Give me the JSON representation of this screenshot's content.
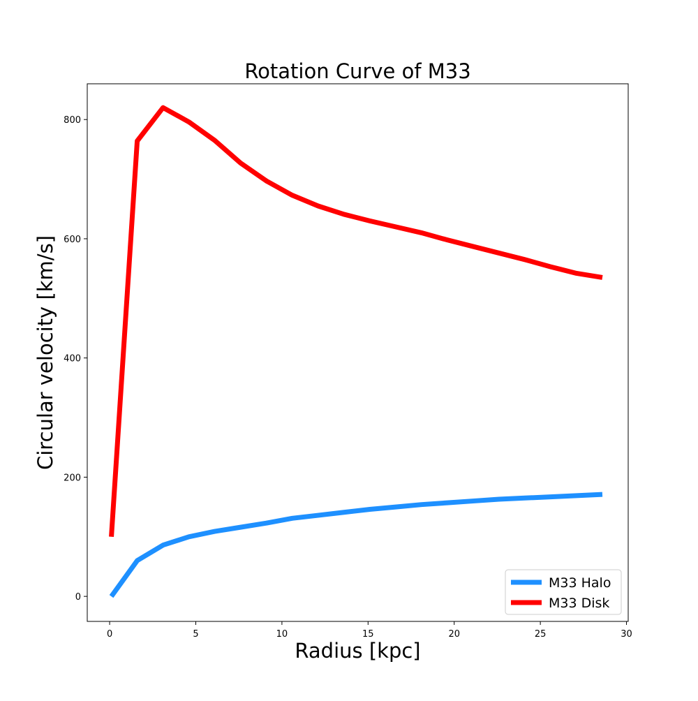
{
  "chart_data": {
    "type": "line",
    "title": "Rotation Curve of M33",
    "xlabel": "Radius [kpc]",
    "ylabel": "Circular velocity [km/s]",
    "xlim": [
      -1.3,
      30.1
    ],
    "ylim": [
      -42,
      860
    ],
    "xticks": [
      0,
      5,
      10,
      15,
      20,
      25,
      30
    ],
    "yticks": [
      0,
      200,
      400,
      600,
      800
    ],
    "grid": false,
    "legend_position": "lower right",
    "series": [
      {
        "name": "M33 Halo",
        "color": "#1e90ff",
        "x": [
          0.1,
          1.6,
          3.1,
          4.6,
          6.1,
          7.6,
          9.1,
          10.6,
          12.1,
          13.6,
          15.1,
          16.6,
          18.1,
          19.6,
          21.1,
          22.6,
          24.1,
          25.6,
          27.1,
          28.6
        ],
        "y": [
          0,
          60,
          86,
          100,
          109,
          116,
          123,
          131,
          136,
          141,
          146,
          150,
          154,
          157,
          160,
          163,
          165,
          167,
          169,
          171
        ]
      },
      {
        "name": "M33 Disk",
        "color": "#ff0000",
        "x": [
          0.1,
          1.6,
          3.1,
          4.6,
          6.1,
          7.6,
          9.1,
          10.6,
          12.1,
          13.6,
          15.1,
          16.6,
          18.1,
          19.6,
          21.1,
          22.6,
          24.1,
          25.6,
          27.1,
          28.6
        ],
        "y": [
          100,
          764,
          820,
          796,
          765,
          727,
          697,
          673,
          655,
          641,
          630,
          620,
          610,
          598,
          587,
          576,
          565,
          553,
          542,
          535
        ]
      }
    ]
  }
}
